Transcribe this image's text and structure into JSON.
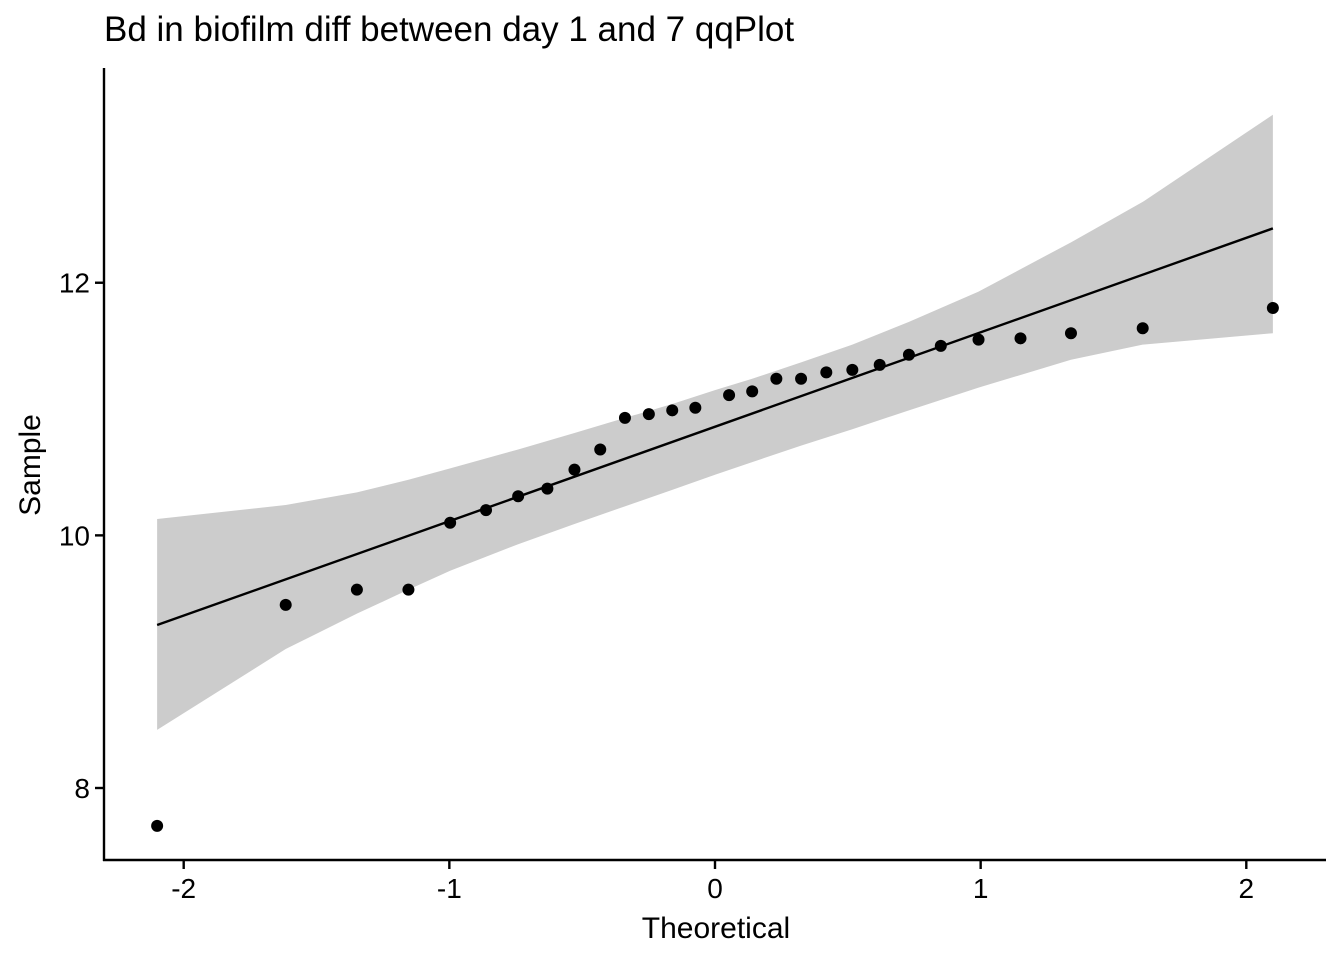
{
  "chart_data": {
    "type": "scatter",
    "title": "Bd in biofilm diff between day 1 and 7 qqPlot",
    "xlabel": "Theoretical",
    "ylabel": "Sample",
    "xlim": [
      -2.3,
      2.3
    ],
    "ylim": [
      7.43,
      13.7
    ],
    "x_ticks": [
      -2,
      -1,
      0,
      1,
      2
    ],
    "x_tick_labels": [
      "-2",
      "-1",
      "0",
      "1",
      "2"
    ],
    "y_ticks": [
      8,
      10,
      12
    ],
    "y_tick_labels": [
      "8",
      "10",
      "12"
    ],
    "grid": false,
    "legend": "none",
    "points": [
      {
        "x": -2.1,
        "y": 7.7
      },
      {
        "x": -1.616,
        "y": 9.45
      },
      {
        "x": -1.348,
        "y": 9.57
      },
      {
        "x": -1.154,
        "y": 9.57
      },
      {
        "x": -0.997,
        "y": 10.1
      },
      {
        "x": -0.862,
        "y": 10.2
      },
      {
        "x": -0.741,
        "y": 10.31
      },
      {
        "x": -0.631,
        "y": 10.37
      },
      {
        "x": -0.529,
        "y": 10.52
      },
      {
        "x": -0.432,
        "y": 10.68
      },
      {
        "x": -0.339,
        "y": 10.93
      },
      {
        "x": -0.249,
        "y": 10.96
      },
      {
        "x": -0.161,
        "y": 10.99
      },
      {
        "x": -0.074,
        "y": 11.01
      },
      {
        "x": 0.053,
        "y": 11.11
      },
      {
        "x": 0.14,
        "y": 11.14
      },
      {
        "x": 0.231,
        "y": 11.24
      },
      {
        "x": 0.324,
        "y": 11.24
      },
      {
        "x": 0.419,
        "y": 11.29
      },
      {
        "x": 0.517,
        "y": 11.31
      },
      {
        "x": 0.62,
        "y": 11.35
      },
      {
        "x": 0.73,
        "y": 11.43
      },
      {
        "x": 0.85,
        "y": 11.5
      },
      {
        "x": 0.992,
        "y": 11.55
      },
      {
        "x": 1.15,
        "y": 11.56
      },
      {
        "x": 1.34,
        "y": 11.6
      },
      {
        "x": 1.61,
        "y": 11.64
      },
      {
        "x": 2.1,
        "y": 11.8
      }
    ],
    "reference_line": {
      "x": [
        -2.1,
        2.1
      ],
      "y": [
        9.29,
        12.43
      ]
    },
    "confidence_band": {
      "color": "#cccccc",
      "x": [
        -2.1,
        -1.616,
        -1.348,
        -1.154,
        -0.997,
        -0.741,
        -0.529,
        -0.339,
        -0.161,
        0.0,
        0.14,
        0.324,
        0.517,
        0.73,
        0.992,
        1.34,
        1.61,
        2.1
      ],
      "upper": [
        10.13,
        10.24,
        10.34,
        10.44,
        10.53,
        10.68,
        10.81,
        10.93,
        11.04,
        11.15,
        11.24,
        11.37,
        11.51,
        11.69,
        11.93,
        12.32,
        12.64,
        13.33
      ],
      "lower": [
        8.46,
        9.1,
        9.38,
        9.57,
        9.72,
        9.93,
        10.09,
        10.23,
        10.36,
        10.48,
        10.58,
        10.71,
        10.84,
        10.99,
        11.17,
        11.39,
        11.51,
        11.6
      ]
    }
  }
}
